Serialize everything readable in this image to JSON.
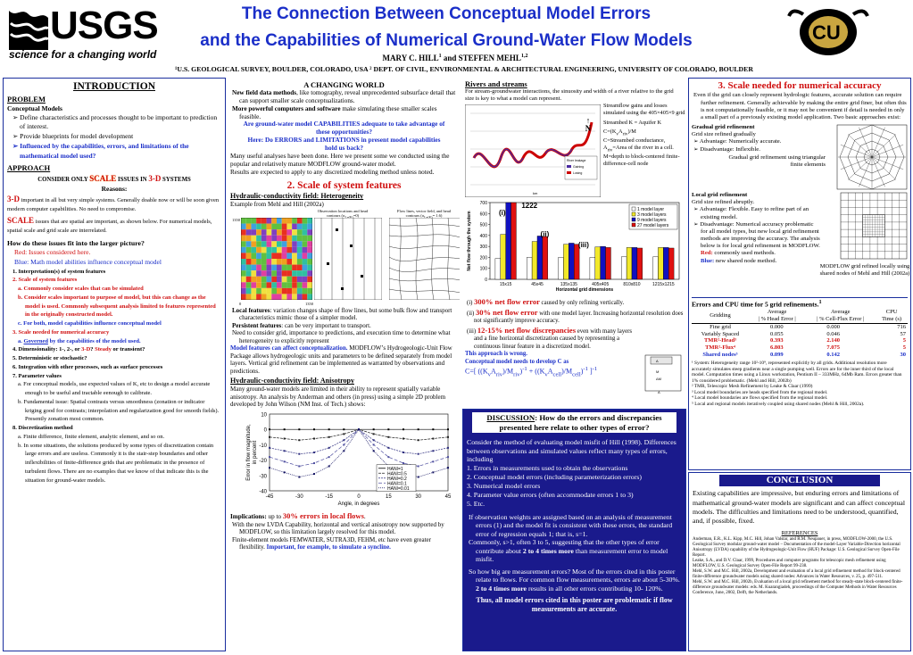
{
  "header": {
    "logo_text": "USGS",
    "tagline": "science for a changing world",
    "title1": "The Connection Between Conceptual Model Errors",
    "title2": "and the Capabilities of Numerical Ground-Water Flow Models",
    "authors": "MARY C. HILL",
    "authors_sup1": "1",
    "authors_and": " and STEFFEN MEHL",
    "authors_sup2": "1,2",
    "affil": "¹U.S. GEOLOGICAL SURVEY, BOULDER, COLORADO, USA   ² DEPT. OF CIVIL, ENVIRONMENTAL & ARCHITECTURAL ENGINEERING, UNIVERSITY OF COLORADO, BOULDER",
    "cu_logo": "CU"
  },
  "intro": {
    "title": "INTRODUCTION",
    "problem": "PROBLEM",
    "cm_head": "Conceptual Models",
    "b1": "Define characteristics and processes thought to be important to prediction of interest.",
    "b2": "Provide blueprints for model development",
    "b3": "Influenced by  the capabilities, errors, and limitations of the mathematical model used?",
    "approach": "APPROACH",
    "consider_pre": "CONSIDER ONLY ",
    "consider_scale": "SCALE",
    "consider_mid": " ISSUES IN ",
    "consider_3d": "3-D",
    "consider_post": " SYSTEMS",
    "reasons": "Reasons:",
    "r1_head": "3-D",
    "r1": " important in all but very simple systems. Generally doable now or will be soon given modern computer capabilities. No need to compromise.",
    "r2_head": "SCALE",
    "r2": "  issues that are spatial are important, as shown below.  For numerical models, spatial scale and grid scale are interrelated.",
    "q": "How do these issues fit into the larger picture?",
    "red_note": "Red:  Issues considered here.",
    "blue_note": "Blue: Math model abilities influence conceptual model",
    "l1": "1.  Interpretation(s) of system features",
    "l2": "2.  Scale of system features",
    "l2a": "a.  Commonly consider  scales that can be simulated",
    "l2b": "b.  Consider scales important to purpose of model, but this can change as the  model is used. Commonly subsequent analysis limited to features represented in the originally constructed model.",
    "l2c": "c.  For both, model capabilities influence conceptual model",
    "l3": "3.  Scale needed for numerical accuracy",
    "l3a_pre": "a.  ",
    "l3a_gov": "Governed",
    "l3a_post": " by the capabilities of the model used.",
    "l4_pre": "4.  Dimensionality: 1-, 2-, or ",
    "l4_3d": "3-D",
    "l4_mid": "? ",
    "l4_steady": "Steady",
    "l4_post": " or transient?",
    "l5": "5.  Deterministic or stochastic?",
    "l6": "6.  Integration with other processes, such as surface processes",
    "l7": "7.  Parameter values",
    "l7a": "a.  For conceptual models, use expected values of K, etc to design a model accurate enough to be useful and tractable eenough to calibrate.",
    "l7b": "b.  Fundamental issue: Spatial contrasts versus smoothness (zonation or indicator kriging good for contrasts; interpolation and regularization good for smooth fields). Presently zonation most common.",
    "l8": "8.  Discretization method",
    "l8a": "a.  Finite difference, finite element,  analytic element, and so on.",
    "l8b": "b.  In some situations, the solutions produced by some types of discretization contain large errors and are useless. Commonly it is the stair-step boundaries and other inflexibilities of finite-difference grids that are problematic in the presence of turbulent flows.  There are no examples that we know of that indicate this is the situation for ground-water models."
  },
  "mid": {
    "title": "A CHANGING WORLD",
    "p1_b1": "New field data methods",
    "p1_1": ", like tomography, reveal unprecedented subsurface detail that can support smaller scale conceptualizations.",
    "p1_b2": "More powerful computers and software",
    "p1_2": " make simulating these smaller scales feasible.",
    "q1": "Are ground-water model CAPABILITIES adequate to take advantage of these opportunities?",
    "q2": "Here: Do ERRORS and LIMITATIONS in present model capabilities hold us back?",
    "p2": "Many useful analyses have been done. Here we present some we conducted using the popular and relatively mature MODFLOW ground-water model.",
    "p3": "Results are expected to apply to any discretized modeling method unless noted.",
    "sec2": "2. Scale of system features",
    "hk1": "Hydraulic-conductivity field: Heterogeneity",
    "hk1_src": "Example from Mehl and Hill (2002a)",
    "obs_lbl1": "Observation locations and head",
    "obs_lbl2": "contours (σ",
    "obs_lbl_sub": "Ln(K)",
    "obs_lbl3": "=0)",
    "flow_lbl1": "Flow lines, vector field, and head",
    "flow_lbl2": "contours (σ",
    "flow_lbl3": "= 1.6)",
    "axis_1350": "1350",
    "axis_0": "0",
    "axis_1350b": "1350",
    "lf_head": "Local features",
    "lf": ":  variation changes shape of flow lines, but some bulk flow and transport characteristics mimic those of a simpler model.",
    "pf_head": "Persistent features",
    "pf": ": can  be very important to transport.",
    "need": "Need to consider grid, importance to predictions, and execution time to determine what heterogeneity to explicitly represent",
    "mf_blue": "Model features can affect conceptualization.",
    "mf": " MODFLOW’s Hydrogeologic-Unit Flow Package allows  hydrogeologic units and parameters to be defined separately from model layers. Vertical grid refinement can be implemented as warranted by observations and predictions.",
    "hk2": "Hydraulic-conductivity field: Anisotropy",
    "aniso": "Many ground-water models are limited in their ability to represent spatially variable anisotropy. An analysis by Anderman and others (in press) using a simple 2D problem developed by John Wilson (NM Inst. of Tech.) shows:",
    "impl_pre": "Implications:",
    "impl_mid": " up to ",
    "impl_red": "30% errors in local flows",
    "impl_end": ".",
    "lvda": "With the new LVDA Capability, horizontal and vertical  anisotropy now supported by MODFLOW, so this limitation largely resolved for this model.",
    "fe_pre": "Finite-element models FEMWATER, SUTRA3D, FEHM, etc have even greater flexibility. ",
    "fe_blue": "Important, for example, to simulate a syncline."
  },
  "rivers": {
    "title": "Rivers and streams",
    "intro": "For stream-groundwater interactions, the sinuosity and width of a river relative to the grid size is key to what a model can represent.",
    "desc1": "Streamflow gains and losses simulated using the 405×405×9 grid.",
    "desc2": "Streambed K = Aquifer K",
    "desc3": "C=(K",
    "desc3b": "A",
    "desc3c": ")/M",
    "desc4": "C=Streambed conductance, A",
    "desc4b": "=Area of the river in a cell.",
    "desc5": "M=depth to block-centered finite-difference-cell node",
    "north": "N",
    "legend_gain": "Gaining",
    "legend_loss": "Losing",
    "legend_title": "River leakage",
    "km_lbl": "km",
    "y_axis_label": "Net flow through the system",
    "roman_i": "(i)",
    "roman_ii": "(ii)",
    "roman_iii": "(iii)",
    "i_pre": "(i) ",
    "i_red": "300% net flow error",
    "i_post": " caused by only refining vertically.",
    "ii_pre": "(ii) ",
    "ii_red": "30% net flow error",
    "ii_post": " with one model layer.  Increasing horizontal resolution does not significantly improve accuracy.",
    "iii_pre": "(iii) ",
    "iii_red": "12-15% net flow discrepancies",
    "iii_post": " even with many layers and a fine horizontal discretization caused by representing a continuous linear feature in a discretized model.",
    "approach_blue": "This approach is wrong.",
    "cond_blue": "Conceptual model needs to develop C as",
    "formula": "C=[ ((K",
    "formula_full": "C=[ ((Kv Ariv)/Mriv)-1 + ((Kv Acell)/Mcell)-1 ]-1",
    "diagram_ariv": "A",
    "diagram_mriv": "M",
    "diagram_dm": "ΔM",
    "diagram_acell": "A"
  },
  "discussion": {
    "title_u": "DISCUSSION",
    "title_rest": ": How do the errors and discrepancies presented here relate to other types of error?",
    "p1": "Consider the method of evaluating model misfit of Hill (1998). Differences between observations and simulated values reflect many types of errors, including",
    "e1": "1.  Errors in measurements used to obtain the observations",
    "e2": "2.  Conceptual model errors (including parameterization errors)",
    "e3": "3.  Numerical model errors",
    "e4": "4.  Parameter value errors (often accommodate errors 1 to 3)",
    "e5": "5.  Etc.",
    "p2": "If observation weights are assigned based on an analysis of measurement errors (1) and the model fit is consistent with these errors, the standard error of regression equals 1; that is,  s=1.",
    "p3_pre": "Commonly, s>1, often 3 to 5, suggesting that the other types of error contribute about ",
    "p3_b": "2 to 4 times more",
    "p3_post": " than measurement error to model misfit.",
    "p4_pre": "So how big are measurement errors? Most of the errors cited in this poster relate to flows. For common flow measurements, errors are about 5-30%. ",
    "p4_b": "2 to 4 times more",
    "p4_post": " results in all other errors contributing 10- 120%.",
    "final": "Thus, all model errors cited in this poster are problematic if flow measurements are accurate."
  },
  "right": {
    "title": "3. Scale needed for numerical accuracy",
    "intro": "Even if the grid can closely represent hydrologic features, accurate solution can require further refinement. Generally achievable by making the entire grid finer, but often this is not computationally feasible, or it may not be convenient if detail is needed in only a small part of a previously existing  model application. Two basic approaches exist:",
    "grad_head": "Gradual grid refinement",
    "grad1": "Grid size  refined gradually",
    "grad2": "Advantage: Numerically  accurate.",
    "grad3": "Disadvantage: Inflexible.",
    "grad_cap": "Gradual grid refinement using triangular finite elements",
    "local_head": "Local grid refinement",
    "local1": "Grid size refined abruptly.",
    "local2": "Advantage: Flexible. Easy to refine part of an existing model.",
    "local3": "Disadvantage: Numerical accuracy problematic for all model types, but new local grid refinement methods are improving the accuracy. The analysis below is for local grid refinement in MODFLOW.",
    "red_lbl": "Red:",
    "red_txt": " commonly used methods.",
    "blue_lbl": "Blue:",
    "blue_txt": "  new shared node method.",
    "local_cap": "MODFLOW grid refined locally using shared nodes of Mehl and Hill (2002a)",
    "table_title": "Errors and CPU time for 5 grid refinements.",
    "table_sup": "1",
    "col_grid": "Gridding",
    "col_avg1": "Average",
    "col_avg1b": "| % Head Error |",
    "col_avg2": "Average",
    "col_avg2b": "| % Cell-Flux Error |",
    "col_cpu": "CPU",
    "col_cpub": "Time (s)",
    "rows": [
      {
        "name": "Fine grid",
        "h": "0.000",
        "f": "0.000",
        "t": "716",
        "cls": "k"
      },
      {
        "name": "Variably Spaced",
        "h": "0.055",
        "f": "0.046",
        "t": "57",
        "cls": "k"
      },
      {
        "name": "TMR²-Head³",
        "h": "0.393",
        "f": "2.140",
        "t": "5",
        "cls": "r"
      },
      {
        "name": "TMR²-Flux⁴",
        "h": "6.803",
        "f": "7.075",
        "t": "5",
        "cls": "r"
      },
      {
        "name": "Shared nodes⁵",
        "h": "0.099",
        "f": "0.142",
        "t": "30",
        "cls": "b"
      }
    ],
    "fn1": "¹ System: Heterogeneity range 10²-10⁹, represented explicitly by all grids. Additional resolution more accurately simulates steep gradients near a single pumping well. Errors are for the inner third of the local model. Computation times using a Linux workstation, Pentium II – 333MHz, 64Mb Ram. Errors greater than 1% considered problematic. (Mehl and Hill, 2002b)",
    "fn2": "² TMR, Telescopic Mesh Refinement by Leake & Claar (1999)",
    "fn3": "³ Local model boundaries are heads specified from the regional model.",
    "fn4": "⁴ Local model boundaries are flows specified from the regional model.",
    "fn5": "⁵ Local and regional models iteratively coupled using shared nodes (Mehl & Hill, 2002a).",
    "concl_title": "CONCLUSION",
    "concl": "Existing capabilities are impressive, but enduring errors and limitations of mathematical ground-water models are significant and can affect conceptual models. The difficulties and limitations need to be understood, quantified, and, if possible, fixed.",
    "ref_title": "REFERENCES",
    "ref1": "Anderman, E.R., K.L. Kipp, M.C. Hill, Johan Valstar, and R.M. Neupauer, in press, MODFLOW-2000, the U.S. Geological Survey modular ground-water model – Documentation of the model-Layer Variable-Direction horizontal Anisotropy (LVDA) capability of the Hydrogeologic-Unit Flow (HUF) Package: U.S. Geological Survey Open-File Report.",
    "ref2": "Leake, S.A., and D.V. Claar, 1999, Procedures and computer programs for telescopic mesh refinement using MODFLOW, U.S. Geological Survey Open-File Report 99-238.",
    "ref3": "Mehl, S.W. and M.C. Hill, 2002a, Development and evaluation of a local grid refinement method for block-centered finite-difference groundwater models using shared nodes: Advances in Water Resources, v. 25, p. 497-511.",
    "ref4": "Mehl, S.W. and M.C. Hill, 2002b, Evaluation of a local grid refinement method for steady-state block-centered finite-difference groundwater models: eds. M. Kuarangiadeh, proceedings of the Computer Methods in Water Resources Conference, June, 2002, Delft, the Netherlands."
  },
  "chart_data": [
    {
      "type": "bar",
      "ylabel": "Net flow through the system",
      "xlabel": "Horizontal grid dimensions",
      "categories": [
        "15x15",
        "45x45",
        "135x135",
        "405x405",
        "810x810",
        "1215x1215"
      ],
      "ylim": [
        0,
        700
      ],
      "yticks": [
        0,
        100,
        200,
        300,
        400,
        500,
        600,
        700
      ],
      "annotation": "1222",
      "series": [
        {
          "name": "1 model layer",
          "color": "#ffffff",
          "values": [
            190,
            200,
            200,
            200,
            205,
            205
          ]
        },
        {
          "name": "3 model layers",
          "color": "#f2e82a",
          "values": [
            410,
            345,
            320,
            295,
            290,
            290
          ]
        },
        {
          "name": "9 model layers",
          "color": "#1010c0",
          "values": [
            700,
            395,
            330,
            300,
            290,
            290
          ]
        },
        {
          "name": "27 model layers",
          "color": "#e01010",
          "values": [
            700,
            390,
            320,
            290,
            285,
            285
          ]
        }
      ]
    },
    {
      "type": "line",
      "xlabel": "Angle, in degrees",
      "ylabel": "Error in flow magnitude, in percent",
      "xticks": [
        -45,
        -30,
        -15,
        0,
        15,
        30,
        45
      ],
      "yticks": [
        10,
        0,
        -10,
        -20,
        -30,
        -40
      ],
      "xlim": [
        -45,
        45
      ],
      "ylim": [
        -40,
        10
      ],
      "x": [
        -45,
        -37.5,
        -30,
        -22.5,
        -15,
        -7.5,
        0,
        7.5,
        15,
        22.5,
        30,
        37.5,
        45
      ],
      "series": [
        {
          "name": "HANI=1",
          "color": "#000000",
          "values": [
            0,
            0,
            0,
            0,
            0,
            0,
            0,
            0,
            0,
            0,
            0,
            0,
            0
          ]
        },
        {
          "name": "HANI=0.5",
          "color": "#202020",
          "values": [
            -5,
            -6,
            -7,
            -6,
            -5,
            -3,
            0,
            -3,
            -5,
            -6,
            -7,
            -6,
            -5
          ]
        },
        {
          "name": "HANI=0.2",
          "color": "#303080",
          "values": [
            -12,
            -14,
            -16,
            -15,
            -12,
            -7,
            0,
            -7,
            -12,
            -15,
            -16,
            -14,
            -12
          ]
        },
        {
          "name": "HANI=0.1",
          "color": "#5050a0",
          "values": [
            -18,
            -21,
            -24,
            -22,
            -18,
            -10,
            0,
            -10,
            -18,
            -22,
            -24,
            -21,
            -18
          ]
        },
        {
          "name": "HANI=0.01",
          "color": "#101060",
          "values": [
            -25,
            -28,
            -31,
            -29,
            -24,
            -14,
            0,
            -14,
            -24,
            -29,
            -31,
            -28,
            -25
          ]
        }
      ]
    }
  ]
}
